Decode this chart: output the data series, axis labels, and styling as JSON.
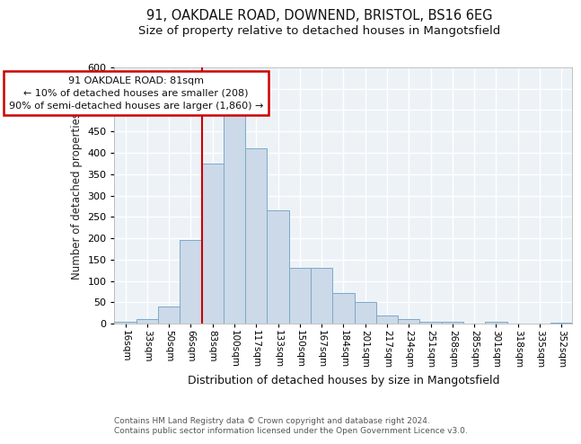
{
  "title1": "91, OAKDALE ROAD, DOWNEND, BRISTOL, BS16 6EG",
  "title2": "Size of property relative to detached houses in Mangotsfield",
  "xlabel": "Distribution of detached houses by size in Mangotsfield",
  "ylabel": "Number of detached properties",
  "categories": [
    "16sqm",
    "33sqm",
    "50sqm",
    "66sqm",
    "83sqm",
    "100sqm",
    "117sqm",
    "133sqm",
    "150sqm",
    "167sqm",
    "184sqm",
    "201sqm",
    "217sqm",
    "234sqm",
    "251sqm",
    "268sqm",
    "285sqm",
    "301sqm",
    "318sqm",
    "335sqm",
    "352sqm"
  ],
  "values": [
    5,
    10,
    40,
    195,
    375,
    490,
    410,
    265,
    130,
    130,
    72,
    50,
    18,
    10,
    5,
    5,
    0,
    5,
    0,
    0,
    3
  ],
  "bar_color": "#ccd9e8",
  "bar_edge_color": "#7aaac8",
  "vline_x_idx": 4,
  "vline_color": "#cc0000",
  "annotation_lines": [
    "91 OAKDALE ROAD: 81sqm",
    "← 10% of detached houses are smaller (208)",
    "90% of semi-detached houses are larger (1,860) →"
  ],
  "annotation_box_color": "#cc0000",
  "ylim": [
    0,
    600
  ],
  "yticks": [
    0,
    50,
    100,
    150,
    200,
    250,
    300,
    350,
    400,
    450,
    500,
    550,
    600
  ],
  "footer1": "Contains HM Land Registry data © Crown copyright and database right 2024.",
  "footer2": "Contains public sector information licensed under the Open Government Licence v3.0.",
  "bg_color": "#edf2f7",
  "grid_color": "#ffffff",
  "title1_fontsize": 10.5,
  "title2_fontsize": 9.5
}
